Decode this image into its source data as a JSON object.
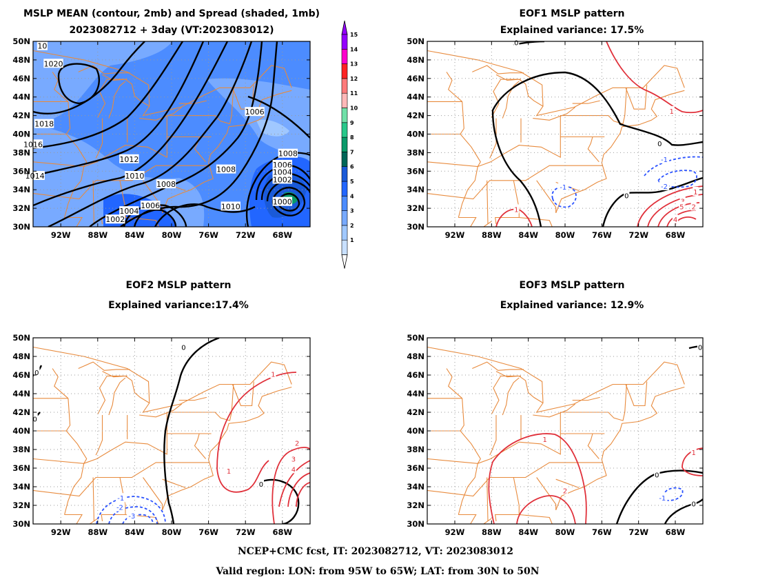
{
  "chart_data": [
    {
      "id": "mean",
      "type": "contour",
      "title_lines": [
        "MSLP MEAN (contour, 2mb) and Spread (shaded, 1mb)",
        "2023082712 + 3day (VT:2023083012)"
      ],
      "xlim": [
        -95,
        -65
      ],
      "ylim": [
        30,
        50
      ],
      "x_ticks": [
        "92W",
        "88W",
        "84W",
        "80W",
        "76W",
        "72W",
        "68W"
      ],
      "y_ticks": [
        "30N",
        "32N",
        "34N",
        "36N",
        "38N",
        "40N",
        "42N",
        "44N",
        "46N",
        "48N",
        "50N"
      ],
      "colorbar": {
        "ticks": [
          "1",
          "2",
          "3",
          "4",
          "5",
          "6",
          "7",
          "8",
          "9",
          "10",
          "11",
          "12",
          "13",
          "14",
          "15"
        ],
        "colors": [
          "#c8e0ff",
          "#a0c8ff",
          "#78aaff",
          "#4c8cff",
          "#2266ff",
          "#1a5ad8",
          "#006658",
          "#0a9a6a",
          "#28c88a",
          "#70e0a8",
          "#ffb8b8",
          "#ff7a7a",
          "#ff2222",
          "#ff00cc",
          "#9400ff"
        ]
      },
      "contour_labels": [
        {
          "text": "1020",
          "lon": -92.8,
          "lat": 47.6
        },
        {
          "text": "1018",
          "lon": -93.8,
          "lat": 41.1
        },
        {
          "text": "1016",
          "lon": -95.0,
          "lat": 38.9
        },
        {
          "text": "1014",
          "lon": -94.8,
          "lat": 35.5
        },
        {
          "text": "1012",
          "lon": -84.6,
          "lat": 37.3
        },
        {
          "text": "1010",
          "lon": -84.0,
          "lat": 35.5
        },
        {
          "text": "1008",
          "lon": -80.6,
          "lat": 34.6
        },
        {
          "text": "1006",
          "lon": -82.3,
          "lat": 32.3
        },
        {
          "text": "1004",
          "lon": -84.6,
          "lat": 31.7
        },
        {
          "text": "1002",
          "lon": -86.1,
          "lat": 30.8
        },
        {
          "text": "1006",
          "lon": -71.0,
          "lat": 42.4
        },
        {
          "text": "1008",
          "lon": -74.1,
          "lat": 36.2
        },
        {
          "text": "1010",
          "lon": -73.6,
          "lat": 32.2
        },
        {
          "text": "1008",
          "lon": -67.4,
          "lat": 37.9
        },
        {
          "text": "1006",
          "lon": -68.0,
          "lat": 36.7
        },
        {
          "text": "1004",
          "lon": -68.0,
          "lat": 35.9
        },
        {
          "text": "1002",
          "lon": -68.0,
          "lat": 35.1
        },
        {
          "text": "1000",
          "lon": -68.0,
          "lat": 32.7
        },
        {
          "text": "10",
          "lon": -94.0,
          "lat": 49.5
        }
      ]
    },
    {
      "id": "eof1",
      "type": "contour",
      "title_lines": [
        "EOF1 MSLP pattern",
        "Explained variance: 17.5%"
      ],
      "xlim": [
        -95,
        -65
      ],
      "ylim": [
        30,
        50
      ],
      "x_ticks": [
        "92W",
        "88W",
        "84W",
        "80W",
        "76W",
        "72W",
        "68W"
      ],
      "y_ticks": [
        "30N",
        "32N",
        "34N",
        "36N",
        "38N",
        "40N",
        "42N",
        "44N",
        "46N",
        "48N",
        "50N"
      ],
      "contour_labels": [
        {
          "text": "0",
          "lon": -85.3,
          "lat": 49.9,
          "color": "#000000"
        },
        {
          "text": "0",
          "lon": -69.7,
          "lat": 39.0,
          "color": "#000000"
        },
        {
          "text": "0",
          "lon": -73.3,
          "lat": 33.4,
          "color": "#000000"
        },
        {
          "text": "1",
          "lon": -68.4,
          "lat": 42.5,
          "color": "#e0303a"
        },
        {
          "text": "1",
          "lon": -85.3,
          "lat": 31.9,
          "color": "#e0303a"
        },
        {
          "text": "-1",
          "lon": -80.2,
          "lat": 34.3,
          "color": "#2850ff"
        },
        {
          "text": "-1",
          "lon": -69.2,
          "lat": 37.3,
          "color": "#2850ff"
        },
        {
          "text": "-2",
          "lon": -69.2,
          "lat": 34.4,
          "color": "#2850ff"
        },
        {
          "text": "1",
          "lon": -65.8,
          "lat": 33.8,
          "color": "#e0303a"
        },
        {
          "text": "2",
          "lon": -66.0,
          "lat": 32.2,
          "color": "#e0303a"
        },
        {
          "text": "3",
          "lon": -67.2,
          "lat": 32.8,
          "color": "#e0303a"
        },
        {
          "text": "4",
          "lon": -68.0,
          "lat": 30.8,
          "color": "#e0303a"
        },
        {
          "text": "5",
          "lon": -67.3,
          "lat": 32.2,
          "color": "#e0303a"
        }
      ]
    },
    {
      "id": "eof2",
      "type": "contour",
      "title_lines": [
        "EOF2 MSLP pattern",
        "Explained variance:17.4%"
      ],
      "xlim": [
        -95,
        -65
      ],
      "ylim": [
        30,
        50
      ],
      "x_ticks": [
        "92W",
        "88W",
        "84W",
        "80W",
        "76W",
        "72W",
        "68W"
      ],
      "y_ticks": [
        "30N",
        "32N",
        "34N",
        "36N",
        "38N",
        "40N",
        "42N",
        "44N",
        "46N",
        "48N",
        "50N"
      ],
      "contour_labels": [
        {
          "text": "0",
          "lon": -78.7,
          "lat": 49.0,
          "color": "#000000"
        },
        {
          "text": "0",
          "lon": -94.6,
          "lat": 46.3,
          "color": "#000000"
        },
        {
          "text": "0",
          "lon": -94.8,
          "lat": 41.3,
          "color": "#000000"
        },
        {
          "text": "0",
          "lon": -70.3,
          "lat": 34.3,
          "color": "#000000"
        },
        {
          "text": "1",
          "lon": -69.0,
          "lat": 46.1,
          "color": "#e0303a"
        },
        {
          "text": "1",
          "lon": -73.8,
          "lat": 35.7,
          "color": "#e0303a"
        },
        {
          "text": "2",
          "lon": -66.4,
          "lat": 38.7,
          "color": "#e0303a"
        },
        {
          "text": "3",
          "lon": -66.8,
          "lat": 37.0,
          "color": "#e0303a"
        },
        {
          "text": "4",
          "lon": -66.8,
          "lat": 35.9,
          "color": "#e0303a"
        },
        {
          "text": "-1",
          "lon": -85.5,
          "lat": 32.8,
          "color": "#2850ff"
        },
        {
          "text": "-2",
          "lon": -85.6,
          "lat": 31.8,
          "color": "#2850ff"
        },
        {
          "text": "-3",
          "lon": -84.3,
          "lat": 30.9,
          "color": "#2850ff"
        }
      ]
    },
    {
      "id": "eof3",
      "type": "contour",
      "title_lines": [
        "EOF3 MSLP pattern",
        "Explained variance: 12.9%"
      ],
      "xlim": [
        -95,
        -65
      ],
      "ylim": [
        30,
        50
      ],
      "x_ticks": [
        "92W",
        "88W",
        "84W",
        "80W",
        "76W",
        "72W",
        "68W"
      ],
      "y_ticks": [
        "30N",
        "32N",
        "34N",
        "36N",
        "38N",
        "40N",
        "42N",
        "44N",
        "46N",
        "48N",
        "50N"
      ],
      "contour_labels": [
        {
          "text": "0",
          "lon": -65.3,
          "lat": 49.0,
          "color": "#000000"
        },
        {
          "text": "0",
          "lon": -70.0,
          "lat": 35.3,
          "color": "#000000"
        },
        {
          "text": "0",
          "lon": -66.0,
          "lat": 32.2,
          "color": "#000000"
        },
        {
          "text": "1",
          "lon": -82.2,
          "lat": 39.1,
          "color": "#e0303a"
        },
        {
          "text": "1",
          "lon": -66.0,
          "lat": 37.7,
          "color": "#e0303a"
        },
        {
          "text": "2",
          "lon": -80.0,
          "lat": 33.6,
          "color": "#e0303a"
        },
        {
          "text": "-1",
          "lon": -69.4,
          "lat": 32.8,
          "color": "#2850ff"
        }
      ]
    }
  ],
  "footer": {
    "line1": "NCEP+CMC fcst, IT: 2023082712, VT: 2023083012",
    "line2": "Valid region: LON: from 95W to 65W; LAT: from 30N to 50N"
  }
}
